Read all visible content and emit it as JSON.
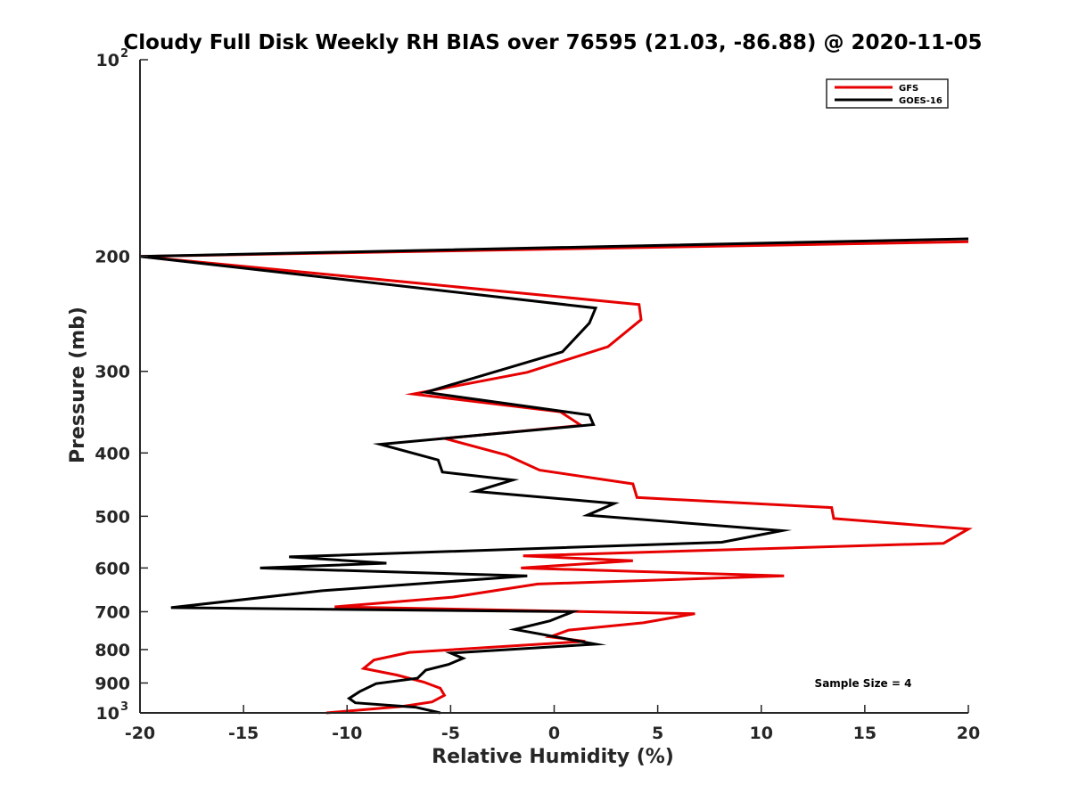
{
  "chart_data": {
    "type": "line",
    "title": "Cloudy Full Disk Weekly RH BIAS over 76595 (21.03, -86.88) @ 2020-11-05",
    "xlabel": "Relative Humidity (%)",
    "ylabel": "Pressure (mb)",
    "xlim": [
      -20,
      20
    ],
    "ylim": [
      100,
      1000
    ],
    "yscale": "log",
    "y_reversed": true,
    "x_ticks": [
      -20,
      -15,
      -10,
      -5,
      0,
      5,
      10,
      15,
      20
    ],
    "x_tick_labels": [
      "-20",
      "-15",
      "-10",
      "-5",
      "0",
      "5",
      "10",
      "15",
      "20"
    ],
    "y_ticks": [
      {
        "value": 100,
        "base": "10",
        "exp": "2"
      },
      {
        "value": 200,
        "label": "200"
      },
      {
        "value": 300,
        "label": "300"
      },
      {
        "value": 400,
        "label": "400"
      },
      {
        "value": 500,
        "label": "500"
      },
      {
        "value": 600,
        "label": "600"
      },
      {
        "value": 700,
        "label": "700"
      },
      {
        "value": 800,
        "label": "800"
      },
      {
        "value": 900,
        "label": "900"
      },
      {
        "value": 1000,
        "base": "10",
        "exp": "3"
      }
    ],
    "legend_position": "top-right",
    "annotation": "Sample Size = 4",
    "series": [
      {
        "name": "GFS",
        "color": "#e60000",
        "points": [
          {
            "x": 20.0,
            "p": 190
          },
          {
            "x": -20.0,
            "p": 200
          },
          {
            "x": 4.1,
            "p": 237
          },
          {
            "x": 4.2,
            "p": 250
          },
          {
            "x": 2.6,
            "p": 275
          },
          {
            "x": -1.3,
            "p": 301
          },
          {
            "x": -6.8,
            "p": 325
          },
          {
            "x": 0.3,
            "p": 346
          },
          {
            "x": 1.3,
            "p": 363
          },
          {
            "x": -5.3,
            "p": 380
          },
          {
            "x": -2.3,
            "p": 403
          },
          {
            "x": -0.7,
            "p": 425
          },
          {
            "x": 3.8,
            "p": 446
          },
          {
            "x": 4.0,
            "p": 468
          },
          {
            "x": 13.4,
            "p": 485
          },
          {
            "x": 13.5,
            "p": 504
          },
          {
            "x": 20.0,
            "p": 523
          },
          {
            "x": 18.8,
            "p": 550
          },
          {
            "x": -1.5,
            "p": 575
          },
          {
            "x": 3.8,
            "p": 585
          },
          {
            "x": -1.6,
            "p": 600
          },
          {
            "x": 11.1,
            "p": 617
          },
          {
            "x": -0.8,
            "p": 635
          },
          {
            "x": -4.9,
            "p": 665
          },
          {
            "x": -10.6,
            "p": 688
          },
          {
            "x": 6.8,
            "p": 705
          },
          {
            "x": 4.3,
            "p": 728
          },
          {
            "x": 0.7,
            "p": 747
          },
          {
            "x": -0.2,
            "p": 765
          },
          {
            "x": 1.5,
            "p": 777
          },
          {
            "x": -7.0,
            "p": 808
          },
          {
            "x": -8.7,
            "p": 830
          },
          {
            "x": -9.2,
            "p": 855
          },
          {
            "x": -7.6,
            "p": 875
          },
          {
            "x": -6.3,
            "p": 897
          },
          {
            "x": -5.5,
            "p": 917
          },
          {
            "x": -5.3,
            "p": 940
          },
          {
            "x": -5.9,
            "p": 962
          },
          {
            "x": -7.3,
            "p": 977
          },
          {
            "x": -11.0,
            "p": 1000
          }
        ]
      },
      {
        "name": "GOES-16",
        "color": "#000000",
        "points": [
          {
            "x": 20.0,
            "p": 188
          },
          {
            "x": -20.0,
            "p": 200
          },
          {
            "x": 2.0,
            "p": 240
          },
          {
            "x": 1.7,
            "p": 253
          },
          {
            "x": 0.4,
            "p": 280
          },
          {
            "x": -6.2,
            "p": 323
          },
          {
            "x": 1.7,
            "p": 350
          },
          {
            "x": 1.9,
            "p": 362
          },
          {
            "x": -8.4,
            "p": 388
          },
          {
            "x": -5.6,
            "p": 410
          },
          {
            "x": -5.4,
            "p": 428
          },
          {
            "x": -2.0,
            "p": 440
          },
          {
            "x": -3.8,
            "p": 458
          },
          {
            "x": 2.9,
            "p": 478
          },
          {
            "x": 1.6,
            "p": 498
          },
          {
            "x": 11.0,
            "p": 526
          },
          {
            "x": 8.1,
            "p": 548
          },
          {
            "x": -12.8,
            "p": 577
          },
          {
            "x": -8.1,
            "p": 590
          },
          {
            "x": -14.2,
            "p": 600
          },
          {
            "x": -1.3,
            "p": 617
          },
          {
            "x": -11.2,
            "p": 650
          },
          {
            "x": -18.5,
            "p": 690
          },
          {
            "x": 0.9,
            "p": 700
          },
          {
            "x": -0.2,
            "p": 723
          },
          {
            "x": -1.9,
            "p": 745
          },
          {
            "x": 2.0,
            "p": 785
          },
          {
            "x": -5.0,
            "p": 810
          },
          {
            "x": -4.4,
            "p": 825
          },
          {
            "x": -5.1,
            "p": 843
          },
          {
            "x": -6.2,
            "p": 860
          },
          {
            "x": -6.6,
            "p": 885
          },
          {
            "x": -8.6,
            "p": 902
          },
          {
            "x": -9.4,
            "p": 928
          },
          {
            "x": -9.9,
            "p": 950
          },
          {
            "x": -9.6,
            "p": 965
          },
          {
            "x": -6.7,
            "p": 980
          },
          {
            "x": -5.5,
            "p": 1000
          }
        ]
      }
    ]
  }
}
